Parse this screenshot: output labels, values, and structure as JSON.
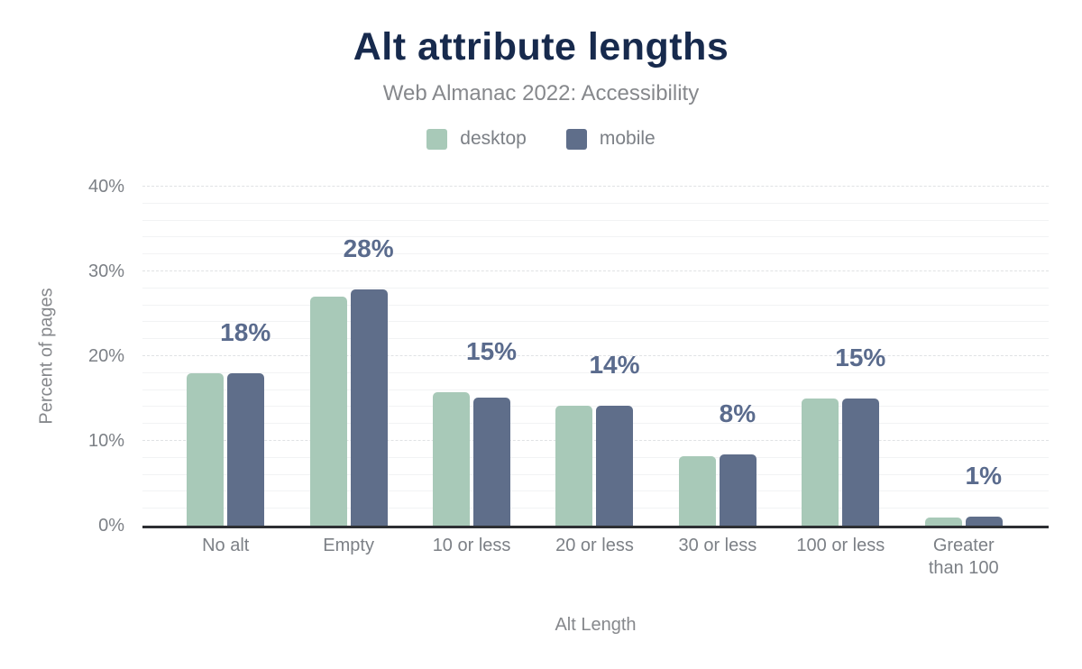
{
  "header": {
    "title": "Alt attribute lengths",
    "subtitle": "Web Almanac 2022: Accessibility"
  },
  "legend": {
    "items": [
      {
        "label": "desktop",
        "color": "#a8c9b8"
      },
      {
        "label": "mobile",
        "color": "#5f6e8a"
      }
    ]
  },
  "axes": {
    "x_title": "Alt Length",
    "y_title": "Percent of pages",
    "y_tick_labels": [
      "40%",
      "30%",
      "20%",
      "10%",
      "0%"
    ]
  },
  "chart_data": {
    "type": "bar",
    "title": "Alt attribute lengths",
    "subtitle": "Web Almanac 2022: Accessibility",
    "categories": [
      "No alt",
      "Empty",
      "10 or less",
      "20 or less",
      "30 or less",
      "100 or less",
      "Greater\nthan 100"
    ],
    "series": [
      {
        "name": "desktop",
        "color": "#a8c9b8",
        "values": [
          18.0,
          27.0,
          15.7,
          14.1,
          8.2,
          15.0,
          1.0
        ]
      },
      {
        "name": "mobile",
        "color": "#5f6e8a",
        "values": [
          18.0,
          27.9,
          15.1,
          14.2,
          8.4,
          15.0,
          1.1
        ]
      }
    ],
    "data_labels": [
      "18%",
      "28%",
      "15%",
      "14%",
      "8%",
      "15%",
      "1%"
    ],
    "xlabel": "Alt Length",
    "ylabel": "Percent of pages",
    "ylim": [
      0,
      40
    ],
    "y_major_step": 10,
    "y_minor_step": 2,
    "grid": "on",
    "legend_position": "top"
  },
  "colors": {
    "title": "#172a4d",
    "muted": "#86888c",
    "tick": "#7c8086",
    "datalabel": "#5a6b8d",
    "axis": "#2d2f33",
    "grid_major": "#e0e2e4",
    "grid_minor": "#f2f3f4",
    "desktop": "#a8c9b8",
    "mobile": "#5f6e8a"
  }
}
